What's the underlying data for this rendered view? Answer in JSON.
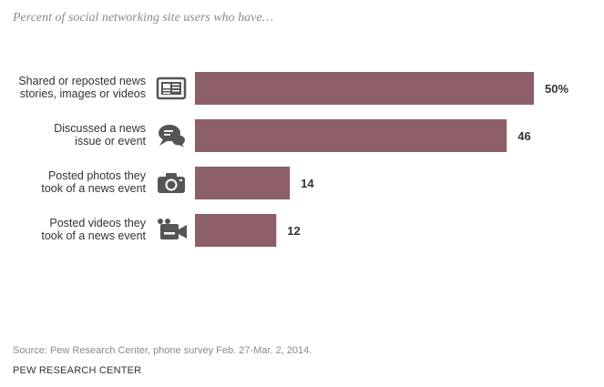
{
  "subtitle": "Percent of social networking site users who have…",
  "chart_data": {
    "type": "bar",
    "orientation": "horizontal",
    "categories": [
      [
        "Shared or reposted news",
        "stories, images or videos"
      ],
      [
        "Discussed a news",
        "issue or event"
      ],
      [
        "Posted photos they",
        "took of a news event"
      ],
      [
        "Posted videos they",
        "took of a news event"
      ]
    ],
    "values": [
      50,
      46,
      14,
      12
    ],
    "value_labels": [
      "50%",
      "46",
      "14",
      "12"
    ],
    "icons": [
      "newspaper-icon",
      "speech-bubbles-icon",
      "camera-icon",
      "video-camera-icon"
    ],
    "xlim": [
      0,
      50
    ],
    "grid": false,
    "bar_color": "#8c5f69",
    "icon_color": "#555555"
  },
  "source": "Source: Pew Research Center, phone survey Feb. 27-Mar. 2, 2014.",
  "org": "PEW RESEARCH CENTER"
}
